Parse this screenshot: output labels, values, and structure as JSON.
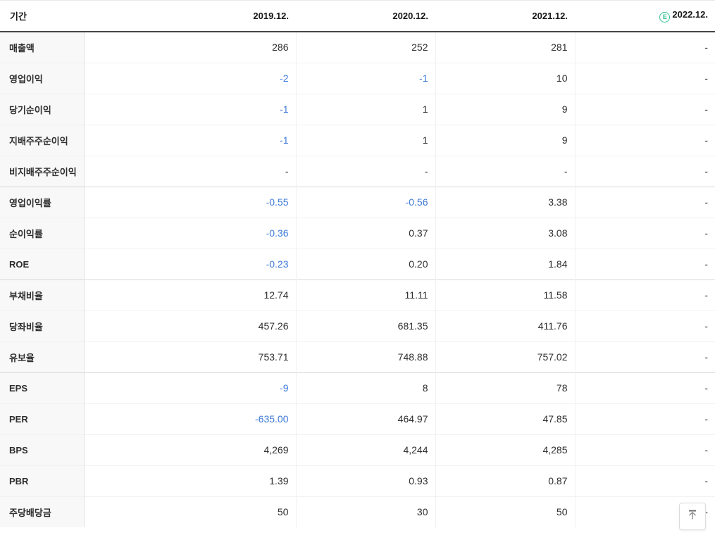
{
  "table": {
    "header": {
      "period_label": "기간",
      "columns": [
        {
          "label": "2019.12.",
          "estimate": false
        },
        {
          "label": "2020.12.",
          "estimate": false
        },
        {
          "label": "2021.12.",
          "estimate": false
        },
        {
          "label": "2022.12.",
          "estimate": true
        }
      ],
      "estimate_badge_letter": "E"
    },
    "sections": [
      {
        "rows": [
          {
            "label": "매출액",
            "values": [
              "286",
              "252",
              "281",
              "-"
            ]
          },
          {
            "label": "영업이익",
            "values": [
              "-2",
              "-1",
              "10",
              "-"
            ]
          },
          {
            "label": "당기순이익",
            "values": [
              "-1",
              "1",
              "9",
              "-"
            ]
          },
          {
            "label": "지배주주순이익",
            "values": [
              "-1",
              "1",
              "9",
              "-"
            ]
          },
          {
            "label": "비지배주주순이익",
            "values": [
              "-",
              "-",
              "-",
              "-"
            ]
          }
        ]
      },
      {
        "rows": [
          {
            "label": "영업이익률",
            "values": [
              "-0.55",
              "-0.56",
              "3.38",
              "-"
            ]
          },
          {
            "label": "순이익률",
            "values": [
              "-0.36",
              "0.37",
              "3.08",
              "-"
            ]
          },
          {
            "label": "ROE",
            "values": [
              "-0.23",
              "0.20",
              "1.84",
              "-"
            ]
          }
        ]
      },
      {
        "rows": [
          {
            "label": "부채비율",
            "values": [
              "12.74",
              "11.11",
              "11.58",
              "-"
            ]
          },
          {
            "label": "당좌비율",
            "values": [
              "457.26",
              "681.35",
              "411.76",
              "-"
            ]
          },
          {
            "label": "유보율",
            "values": [
              "753.71",
              "748.88",
              "757.02",
              "-"
            ]
          }
        ]
      },
      {
        "rows": [
          {
            "label": "EPS",
            "values": [
              "-9",
              "8",
              "78",
              "-"
            ]
          },
          {
            "label": "PER",
            "values": [
              "-635.00",
              "464.97",
              "47.85",
              "-"
            ]
          },
          {
            "label": "BPS",
            "values": [
              "4,269",
              "4,244",
              "4,285",
              "-"
            ]
          },
          {
            "label": "PBR",
            "values": [
              "1.39",
              "0.93",
              "0.87",
              "-"
            ]
          },
          {
            "label": "주당배당금",
            "values": [
              "50",
              "30",
              "50",
              "-"
            ]
          }
        ]
      }
    ]
  },
  "icons": {
    "estimate": "circled-E",
    "scroll_top": "arrow-up-to-top"
  },
  "colors": {
    "negative_value": "#3d7ad8",
    "estimate_green": "#35c091",
    "header_border": "#454545",
    "label_cell_bg": "#f8f8f8"
  }
}
